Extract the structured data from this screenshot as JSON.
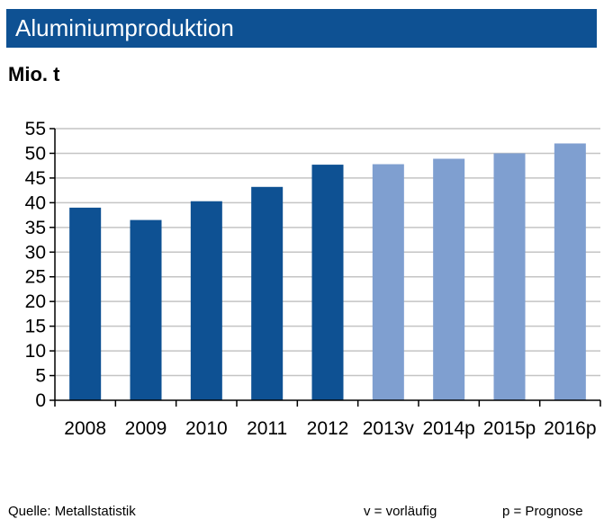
{
  "header": {
    "title": "Aluminiumproduktion",
    "unit": "Mio. t"
  },
  "footer": {
    "source": "Quelle:  Metallstatistik",
    "note_v": "v = vorläufig",
    "note_p": "p = Prognose"
  },
  "colors": {
    "header_bg": "#0e5193",
    "actual": "#0e5193",
    "forecast": "#7f9fd0"
  },
  "chart_data": {
    "type": "bar",
    "title": "Aluminiumproduktion",
    "ylabel": "Mio. t",
    "xlabel": "",
    "categories": [
      "2008",
      "2009",
      "2010",
      "2011",
      "2012",
      "2013v",
      "2014p",
      "2015p",
      "2016p"
    ],
    "values": [
      39,
      36.5,
      40.3,
      43.2,
      47.7,
      47.8,
      48.9,
      50,
      52
    ],
    "bar_status": [
      "actual",
      "actual",
      "actual",
      "actual",
      "actual",
      "preliminary",
      "forecast",
      "forecast",
      "forecast"
    ],
    "ylim": [
      0,
      55
    ],
    "yticks": [
      0,
      5,
      10,
      15,
      20,
      25,
      30,
      35,
      40,
      45,
      50,
      55
    ],
    "grid": true,
    "legend": "none"
  }
}
